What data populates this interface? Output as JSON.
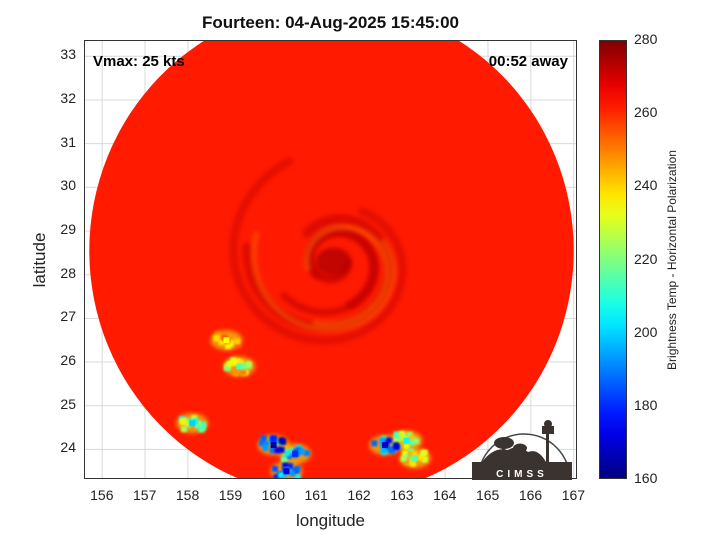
{
  "title": "Fourteen: 04-Aug-2025 15:45:00",
  "annotations": {
    "vmax": "Vmax: 25 kts",
    "time_away": "00:52 away"
  },
  "axes": {
    "xlabel": "longitude",
    "ylabel": "latitude",
    "xlim": [
      155.6,
      167.1
    ],
    "ylim": [
      23.3,
      33.35
    ],
    "x_ticks": [
      "156",
      "157",
      "158",
      "159",
      "160",
      "161",
      "162",
      "163",
      "164",
      "165",
      "166",
      "167"
    ],
    "y_ticks": [
      "24",
      "25",
      "26",
      "27",
      "28",
      "29",
      "30",
      "31",
      "32",
      "33"
    ],
    "grid": true
  },
  "colorbar": {
    "label": "Brightness Temp - Horizontal Polarization",
    "range": [
      160,
      280
    ],
    "ticks": [
      "160",
      "180",
      "200",
      "220",
      "240",
      "260",
      "280"
    ],
    "colormap": "jet"
  },
  "swath": {
    "center_lon": 161.35,
    "center_lat": 28.55,
    "radius_deg": 5.65,
    "background_temp": 262
  },
  "storm": {
    "center_lon": 161.4,
    "center_lat": 28.3,
    "spiral_band_temp": 272
  },
  "cold_patches": [
    {
      "lon": 160.5,
      "lat": 23.9,
      "temp": 180
    },
    {
      "lon": 160.3,
      "lat": 23.5,
      "temp": 170
    },
    {
      "lon": 160.0,
      "lat": 24.1,
      "temp": 165
    },
    {
      "lon": 163.1,
      "lat": 24.2,
      "temp": 205
    },
    {
      "lon": 162.6,
      "lat": 24.1,
      "temp": 168
    },
    {
      "lon": 163.3,
      "lat": 23.8,
      "temp": 215
    },
    {
      "lon": 158.1,
      "lat": 24.6,
      "temp": 200
    },
    {
      "lon": 159.2,
      "lat": 25.9,
      "temp": 215
    },
    {
      "lon": 158.9,
      "lat": 26.5,
      "temp": 235
    }
  ],
  "logo": {
    "text": "CIMSS",
    "label": "CIMSS"
  }
}
